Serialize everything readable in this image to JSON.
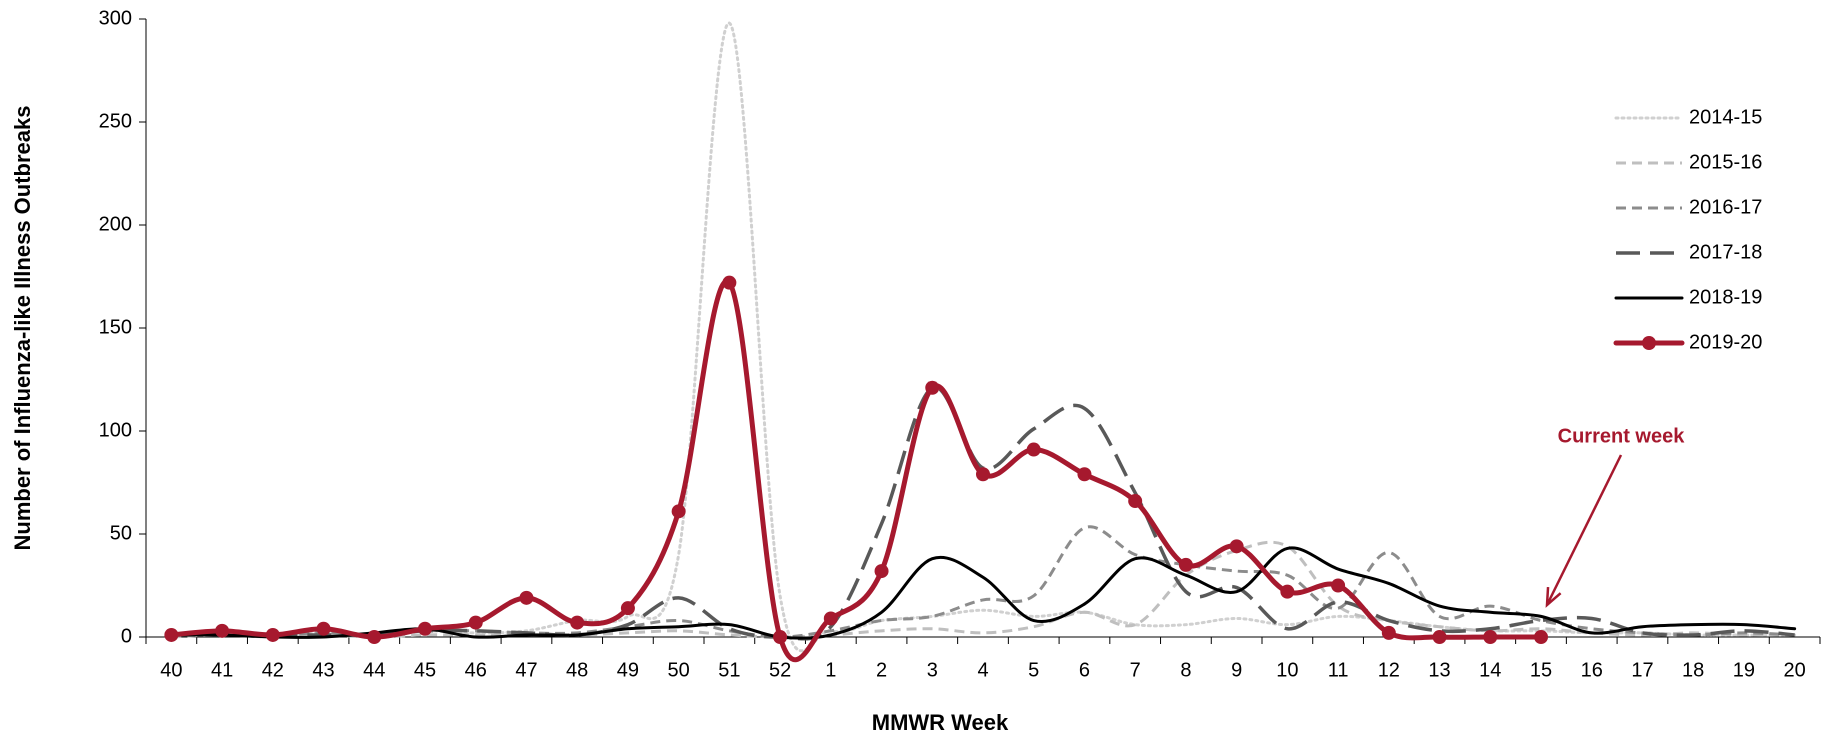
{
  "chart_data": {
    "type": "line",
    "x_label": "MMWR Week",
    "y_label": "Number of Influenza-like Illness Outbreaks",
    "categories": [
      "40",
      "41",
      "42",
      "43",
      "44",
      "45",
      "46",
      "47",
      "48",
      "49",
      "50",
      "51",
      "52",
      "1",
      "2",
      "3",
      "4",
      "5",
      "6",
      "7",
      "8",
      "9",
      "10",
      "11",
      "12",
      "13",
      "14",
      "15",
      "16",
      "17",
      "18",
      "19",
      "20"
    ],
    "ylim": [
      0,
      300
    ],
    "yticks": [
      0,
      50,
      100,
      150,
      200,
      250,
      300
    ],
    "grid": false,
    "legend": "right",
    "annotation": {
      "text": "Current week",
      "category": 27,
      "color": "#a6192e"
    },
    "series": [
      {
        "name": "2014-15",
        "color": "#d0d0d0",
        "line_style": "dotted",
        "markers": false,
        "values": [
          1,
          2,
          1,
          2,
          1,
          3,
          2,
          3,
          8,
          10,
          40,
          298,
          20,
          3,
          8,
          10,
          13,
          10,
          12,
          6,
          6,
          9,
          6,
          10,
          8,
          5,
          3,
          3,
          2,
          2,
          1,
          1,
          1
        ]
      },
      {
        "name": "2015-16",
        "color": "#bfbfbf",
        "line_style": "dashed",
        "markers": false,
        "values": [
          0,
          1,
          0,
          1,
          0,
          1,
          1,
          1,
          1,
          2,
          3,
          1,
          0,
          1,
          3,
          4,
          2,
          5,
          12,
          6,
          30,
          42,
          44,
          15,
          8,
          5,
          3,
          4,
          2,
          1,
          2,
          1,
          1
        ]
      },
      {
        "name": "2016-17",
        "color": "#8c8c8c",
        "line_style": "dashed",
        "markers": false,
        "values": [
          1,
          1,
          1,
          2,
          1,
          3,
          3,
          2,
          2,
          5,
          8,
          3,
          0,
          3,
          8,
          10,
          18,
          20,
          53,
          40,
          35,
          32,
          30,
          14,
          41,
          10,
          15,
          8,
          4,
          2,
          1,
          2,
          1
        ]
      },
      {
        "name": "2017-18",
        "color": "#595959",
        "line_style": "longdash",
        "markers": false,
        "values": [
          1,
          1,
          1,
          1,
          1,
          3,
          3,
          2,
          1,
          6,
          19,
          4,
          0,
          5,
          55,
          121,
          82,
          101,
          111,
          70,
          22,
          24,
          4,
          17,
          8,
          3,
          4,
          8,
          9,
          2,
          1,
          3,
          1
        ]
      },
      {
        "name": "2018-19",
        "color": "#000000",
        "line_style": "solid",
        "markers": false,
        "values": [
          1,
          1,
          0,
          0,
          2,
          4,
          0,
          1,
          1,
          4,
          5,
          6,
          0,
          1,
          12,
          38,
          29,
          8,
          16,
          38,
          30,
          22,
          43,
          33,
          26,
          15,
          12,
          10,
          2,
          5,
          6,
          6,
          4
        ]
      },
      {
        "name": "2019-20",
        "color": "#a6192e",
        "line_style": "solid",
        "markers": true,
        "values": [
          1,
          3,
          1,
          4,
          0,
          4,
          7,
          19,
          7,
          14,
          61,
          172,
          0,
          9,
          32,
          121,
          79,
          91,
          79,
          66,
          35,
          44,
          22,
          25,
          2,
          0,
          0,
          0,
          null,
          null,
          null,
          null,
          null
        ]
      }
    ]
  }
}
